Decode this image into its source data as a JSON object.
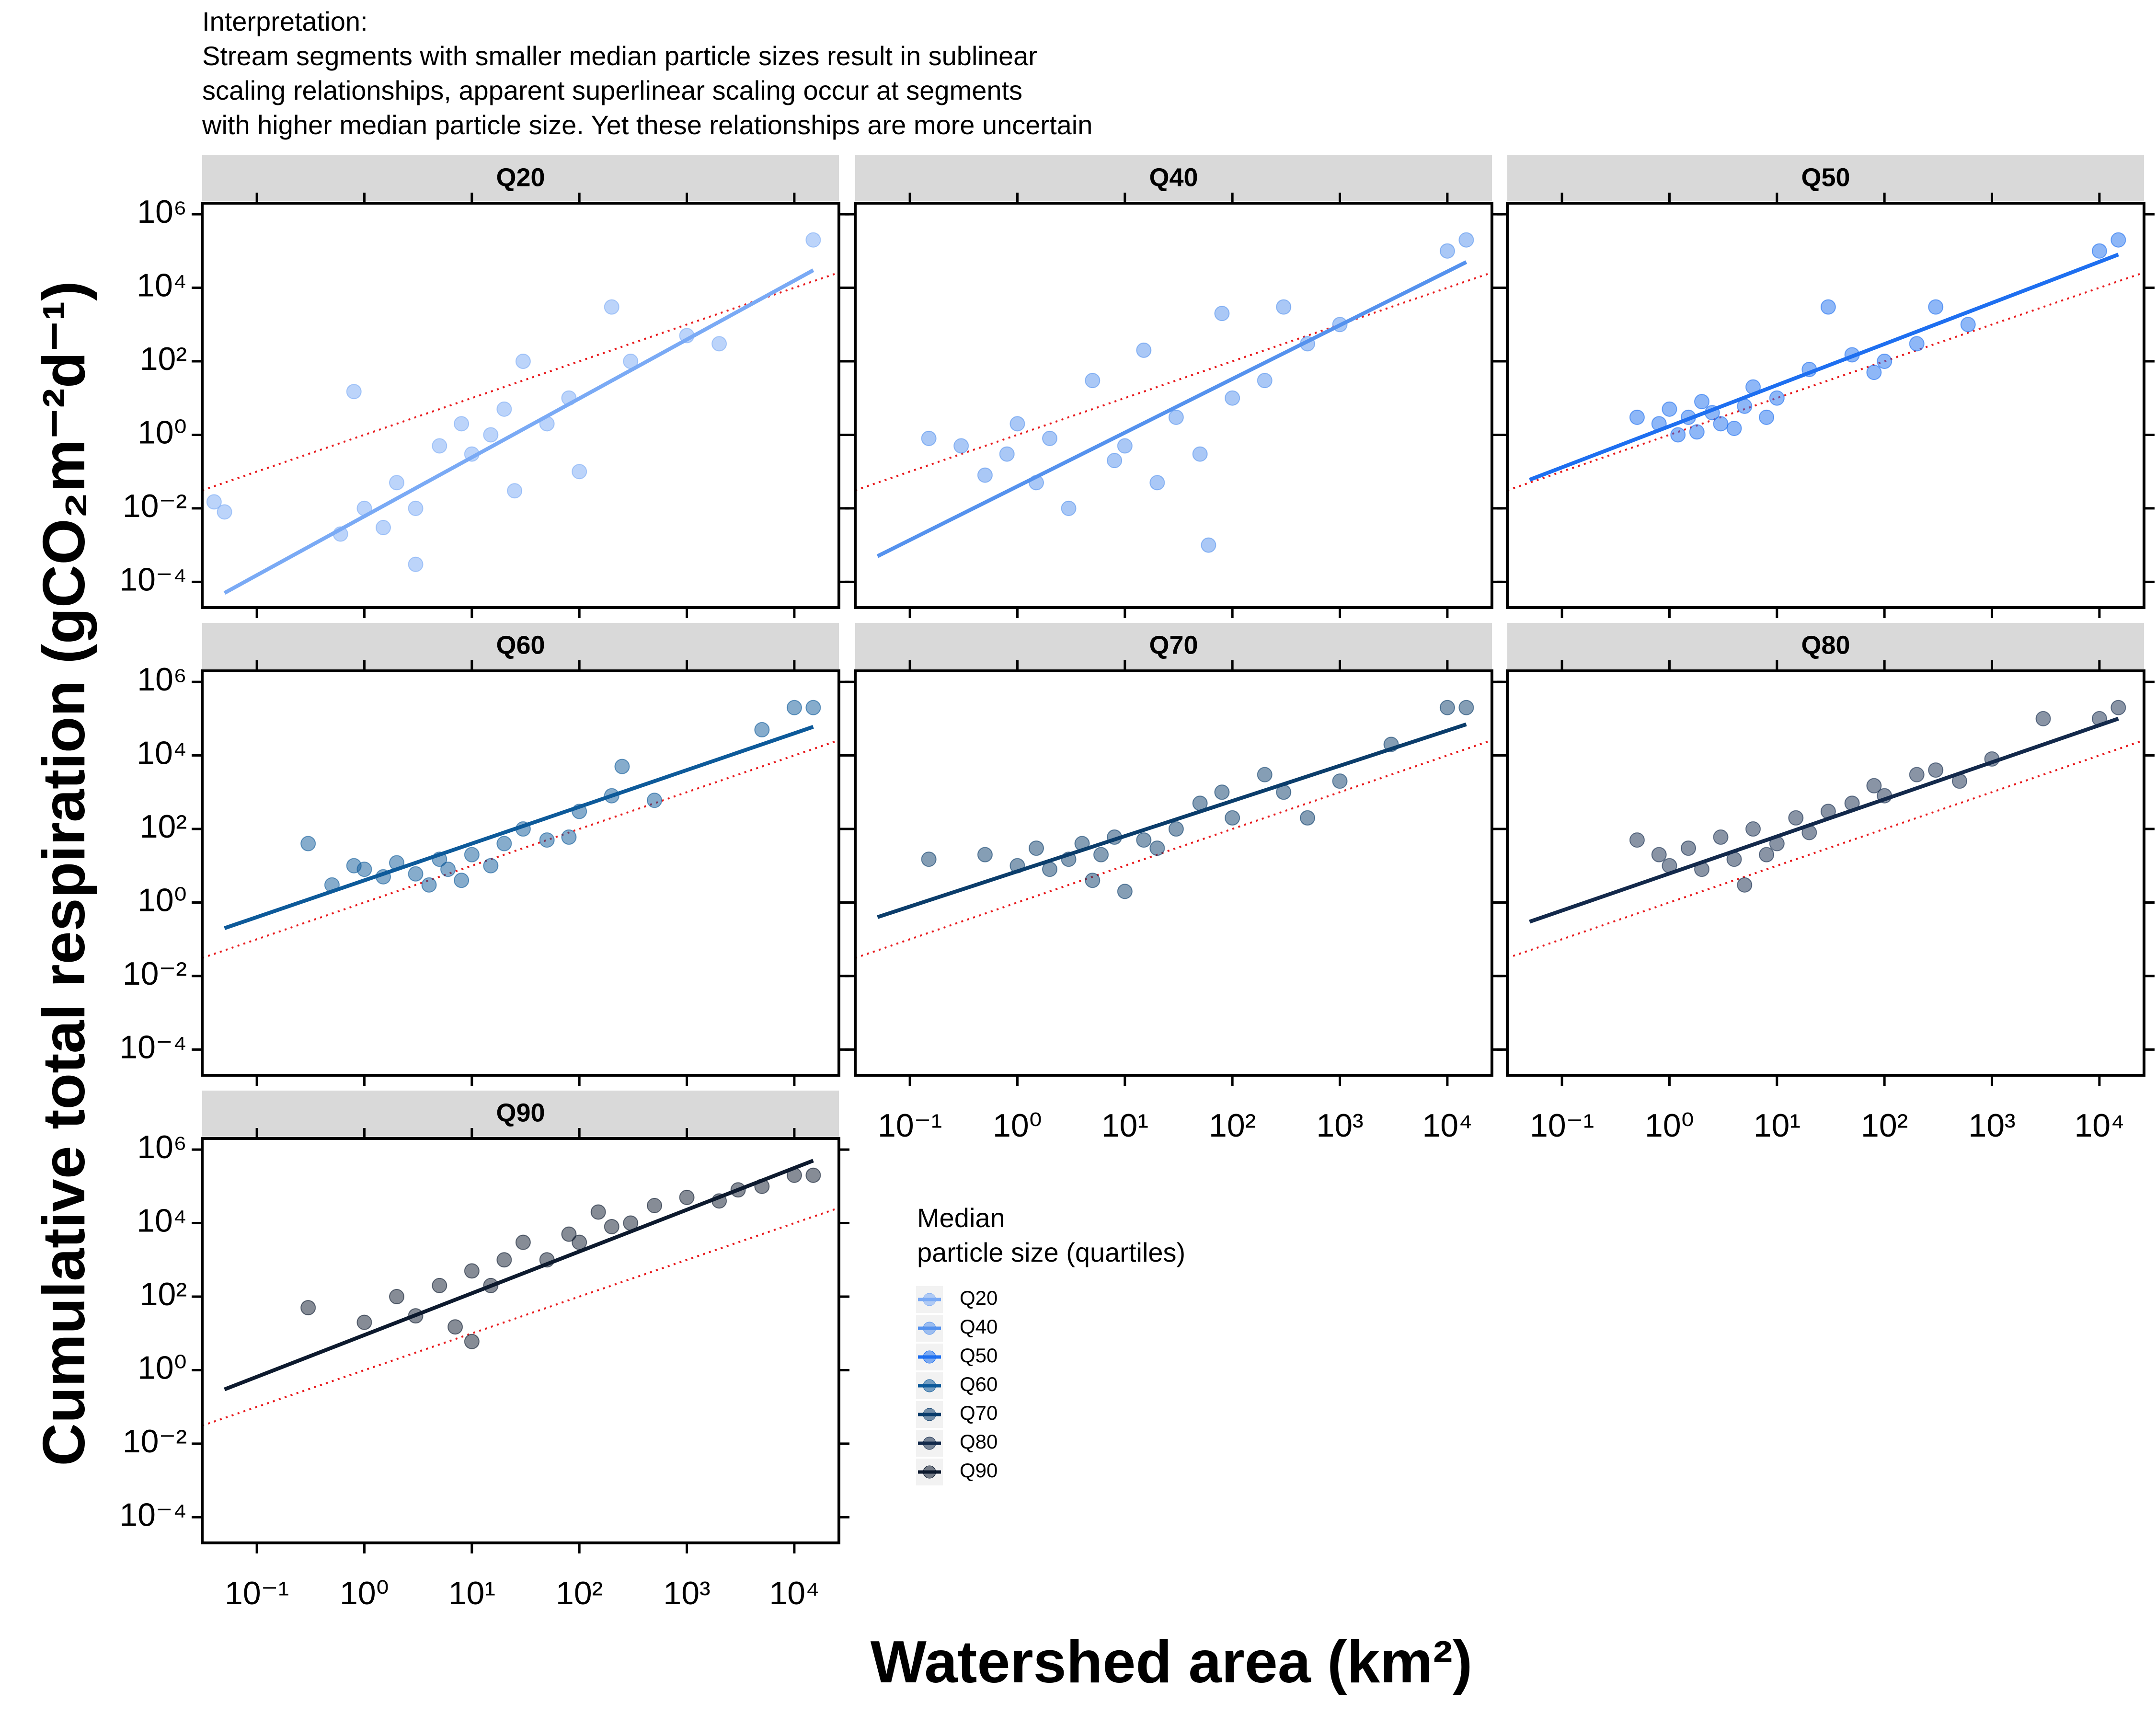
{
  "chart_data": {
    "type": "scatter",
    "annotation": [
      "Interpretation:",
      "Stream segments with smaller median particle sizes result in sublinear",
      "scaling relationships, apparent superlinear scaling occur at segments",
      "with higher median particle size. Yet these relationships are more uncertain"
    ],
    "xlabel": "Watershed area (km²)",
    "ylabel": "Cumulative total respiration (gCO₂m⁻²d⁻¹)",
    "xscale": "log",
    "yscale": "log",
    "xlim": [
      0.031,
      26000
    ],
    "ylim": [
      2e-05,
      2000000
    ],
    "xticks": [
      {
        "value": 0.1,
        "label": "10⁻¹"
      },
      {
        "value": 1,
        "label": "10⁰"
      },
      {
        "value": 10,
        "label": "10¹"
      },
      {
        "value": 100,
        "label": "10²"
      },
      {
        "value": 1000,
        "label": "10³"
      },
      {
        "value": 10000,
        "label": "10⁴"
      }
    ],
    "yticks": [
      {
        "value": 0.0001,
        "label": "10⁻⁴"
      },
      {
        "value": 0.01,
        "label": "10⁻²"
      },
      {
        "value": 1,
        "label": "10⁰"
      },
      {
        "value": 100,
        "label": "10²"
      },
      {
        "value": 10000,
        "label": "10⁴"
      },
      {
        "value": 1000000,
        "label": "10⁶"
      }
    ],
    "reference": {
      "color": "#e8191c",
      "x": [
        0.031,
        26000
      ],
      "y": [
        0.031,
        26000
      ]
    },
    "legend_title": [
      "Median",
      "particle size (quartiles)"
    ],
    "facets": [
      {
        "name": "Q20",
        "color": "#7aaaf5",
        "x": [
          0.04,
          0.05,
          0.6,
          0.8,
          1,
          1.5,
          2,
          3,
          5,
          8,
          10,
          15,
          20,
          30,
          50,
          80,
          100,
          200,
          300,
          1000,
          2000,
          15000,
          3,
          25
        ],
        "y": [
          0.015,
          0.008,
          0.002,
          15,
          0.01,
          0.003,
          0.05,
          0.01,
          0.5,
          2,
          0.3,
          1,
          5,
          100,
          2,
          10,
          0.1,
          3000,
          100,
          500,
          300,
          200000,
          0.0003,
          0.03
        ],
        "fit": {
          "x": [
            0.05,
            15000
          ],
          "y": [
            5e-05,
            30000
          ]
        }
      },
      {
        "name": "Q40",
        "color": "#5592ee",
        "x": [
          0.15,
          0.3,
          0.5,
          0.8,
          1,
          1.5,
          2,
          3,
          5,
          8,
          10,
          15,
          20,
          30,
          50,
          60,
          80,
          100,
          200,
          300,
          500,
          1000,
          10000,
          15000
        ],
        "y": [
          0.8,
          0.5,
          0.08,
          0.3,
          2,
          0.05,
          0.8,
          0.01,
          30,
          0.2,
          0.5,
          200,
          0.05,
          3,
          0.3,
          0.001,
          2000,
          10,
          30,
          3000,
          300,
          1000,
          100000,
          200000
        ],
        "fit": {
          "x": [
            0.05,
            15000
          ],
          "y": [
            0.0005,
            50000
          ]
        }
      },
      {
        "name": "Q50",
        "color": "#1e6ff0",
        "x": [
          0.5,
          0.8,
          1,
          1.2,
          1.5,
          2,
          2.5,
          3,
          4,
          5,
          6,
          8,
          10,
          20,
          30,
          50,
          80,
          100,
          200,
          300,
          600,
          10000,
          15000,
          1.8
        ],
        "y": [
          3,
          2,
          5,
          1,
          3,
          8,
          4,
          2,
          1.5,
          6,
          20,
          3,
          10,
          60,
          3000,
          150,
          50,
          100,
          300,
          3000,
          1000,
          100000,
          200000,
          1.2
        ],
        "fit": {
          "x": [
            0.05,
            15000
          ],
          "y": [
            0.06,
            80000
          ]
        }
      },
      {
        "name": "Q60",
        "color": "#0d5a9a",
        "x": [
          0.3,
          0.5,
          0.8,
          1,
          1.5,
          2,
          3,
          4,
          5,
          6,
          8,
          10,
          15,
          20,
          30,
          50,
          80,
          100,
          200,
          250,
          500,
          10000,
          15000,
          5000
        ],
        "y": [
          40,
          3,
          10,
          8,
          5,
          12,
          6,
          3,
          15,
          8,
          4,
          20,
          10,
          40,
          100,
          50,
          60,
          300,
          800,
          5000,
          600,
          200000,
          200000,
          50000
        ],
        "fit": {
          "x": [
            0.05,
            15000
          ],
          "y": [
            0.2,
            60000
          ]
        }
      },
      {
        "name": "Q70",
        "color": "#0b3d6b",
        "x": [
          0.15,
          0.5,
          1,
          1.5,
          2,
          3,
          4,
          5,
          6,
          8,
          10,
          15,
          20,
          30,
          50,
          80,
          100,
          200,
          300,
          500,
          1000,
          10000,
          15000,
          3000
        ],
        "y": [
          15,
          20,
          10,
          30,
          8,
          15,
          40,
          4,
          20,
          60,
          2,
          50,
          30,
          100,
          500,
          1000,
          200,
          3000,
          1000,
          200,
          2000,
          200000,
          200000,
          20000
        ],
        "fit": {
          "x": [
            0.05,
            15000
          ],
          "y": [
            0.4,
            70000
          ]
        }
      },
      {
        "name": "Q80",
        "color": "#13294b",
        "x": [
          0.5,
          0.8,
          1,
          1.5,
          2,
          3,
          4,
          5,
          6,
          8,
          10,
          15,
          20,
          30,
          50,
          80,
          100,
          200,
          300,
          500,
          1000,
          3000,
          10000,
          15000
        ],
        "y": [
          50,
          20,
          10,
          30,
          8,
          60,
          15,
          3,
          100,
          20,
          40,
          200,
          80,
          300,
          500,
          1500,
          800,
          3000,
          4000,
          2000,
          8000,
          100000,
          100000,
          200000
        ],
        "fit": {
          "x": [
            0.05,
            15000
          ],
          "y": [
            0.3,
            100000
          ]
        }
      },
      {
        "name": "Q90",
        "color": "#0d1a2e",
        "x": [
          0.3,
          1,
          2,
          3,
          5,
          7,
          10,
          10,
          15,
          20,
          30,
          50,
          80,
          100,
          150,
          200,
          300,
          500,
          1000,
          2000,
          3000,
          5000,
          10000,
          15000
        ],
        "y": [
          50,
          20,
          100,
          30,
          200,
          15,
          6,
          500,
          200,
          1000,
          3000,
          1000,
          5000,
          3000,
          20000,
          8000,
          10000,
          30000,
          50000,
          40000,
          80000,
          100000,
          200000,
          200000
        ],
        "fit": {
          "x": [
            0.05,
            15000
          ],
          "y": [
            0.3,
            500000
          ]
        }
      }
    ]
  }
}
